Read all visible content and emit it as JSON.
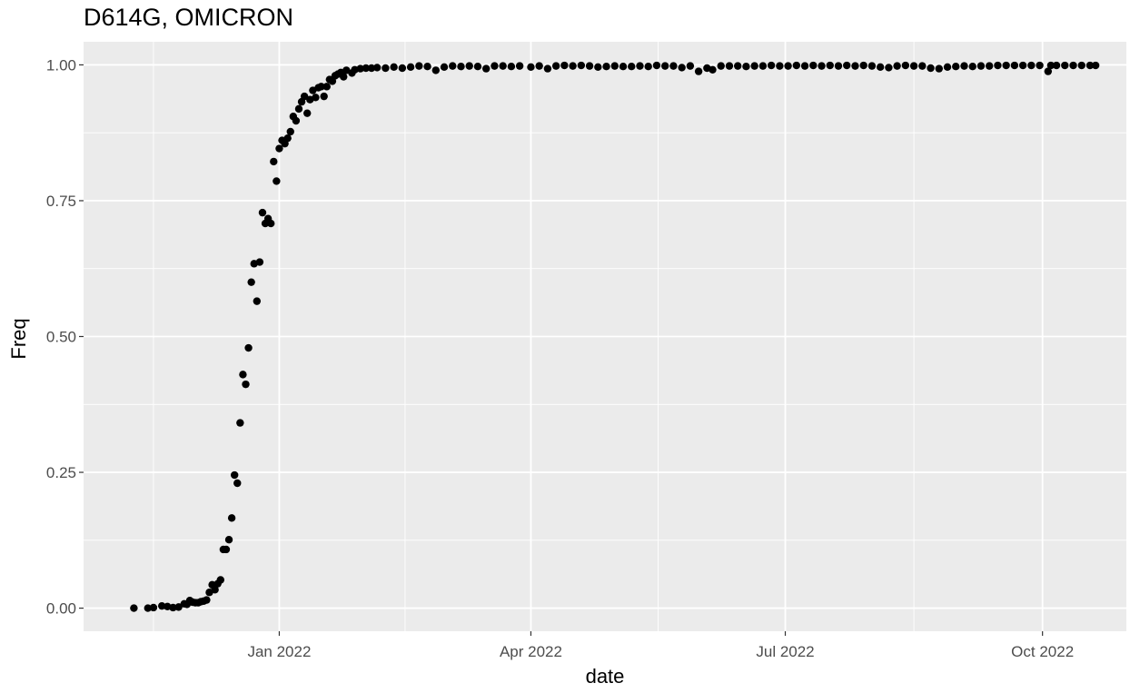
{
  "chart_data": {
    "type": "scatter",
    "title": "D614G, OMICRON",
    "xlabel": "date",
    "ylabel": "Freq",
    "x_axis_type": "date",
    "xlim": [
      "2021-10-23",
      "2022-10-31"
    ],
    "ylim": [
      -0.0425,
      1.0425
    ],
    "x_ticks": [
      {
        "date": "2022-01-01",
        "label": "Jan 2022"
      },
      {
        "date": "2022-04-01",
        "label": "Apr 2022"
      },
      {
        "date": "2022-07-01",
        "label": "Jul 2022"
      },
      {
        "date": "2022-10-01",
        "label": "Oct 2022"
      }
    ],
    "y_ticks": [
      {
        "value": 0,
        "label": "0.00"
      },
      {
        "value": 0.25,
        "label": "0.25"
      },
      {
        "value": 0.5,
        "label": "0.50"
      },
      {
        "value": 0.75,
        "label": "0.75"
      },
      {
        "value": 1,
        "label": "1.00"
      }
    ],
    "grid": true,
    "legend": "none",
    "point_color": "#000000",
    "panel_background": "#ebebeb",
    "grid_color": "#ffffff",
    "points": [
      {
        "x": "2021-11-10",
        "y": 0.0
      },
      {
        "x": "2021-11-15",
        "y": 0.0
      },
      {
        "x": "2021-11-17",
        "y": 0.001
      },
      {
        "x": "2021-11-20",
        "y": 0.004
      },
      {
        "x": "2021-11-22",
        "y": 0.003
      },
      {
        "x": "2021-11-24",
        "y": 0.001
      },
      {
        "x": "2021-11-26",
        "y": 0.002
      },
      {
        "x": "2021-11-28",
        "y": 0.008
      },
      {
        "x": "2021-11-29",
        "y": 0.007
      },
      {
        "x": "2021-11-30",
        "y": 0.014
      },
      {
        "x": "2021-12-01",
        "y": 0.011
      },
      {
        "x": "2021-12-02",
        "y": 0.01
      },
      {
        "x": "2021-12-03",
        "y": 0.01
      },
      {
        "x": "2021-12-04",
        "y": 0.012
      },
      {
        "x": "2021-12-05",
        "y": 0.013
      },
      {
        "x": "2021-12-06",
        "y": 0.015
      },
      {
        "x": "2021-12-07",
        "y": 0.029
      },
      {
        "x": "2021-12-08",
        "y": 0.043
      },
      {
        "x": "2021-12-09",
        "y": 0.034
      },
      {
        "x": "2021-12-10",
        "y": 0.045
      },
      {
        "x": "2021-12-11",
        "y": 0.052
      },
      {
        "x": "2021-12-12",
        "y": 0.108
      },
      {
        "x": "2021-12-13",
        "y": 0.108
      },
      {
        "x": "2021-12-14",
        "y": 0.126
      },
      {
        "x": "2021-12-15",
        "y": 0.166
      },
      {
        "x": "2021-12-16",
        "y": 0.245
      },
      {
        "x": "2021-12-17",
        "y": 0.23
      },
      {
        "x": "2021-12-18",
        "y": 0.341
      },
      {
        "x": "2021-12-19",
        "y": 0.43
      },
      {
        "x": "2021-12-20",
        "y": 0.412
      },
      {
        "x": "2021-12-21",
        "y": 0.479
      },
      {
        "x": "2021-12-22",
        "y": 0.6
      },
      {
        "x": "2021-12-23",
        "y": 0.634
      },
      {
        "x": "2021-12-24",
        "y": 0.565
      },
      {
        "x": "2021-12-25",
        "y": 0.637
      },
      {
        "x": "2021-12-26",
        "y": 0.728
      },
      {
        "x": "2021-12-27",
        "y": 0.708
      },
      {
        "x": "2021-12-28",
        "y": 0.717
      },
      {
        "x": "2021-12-29",
        "y": 0.708
      },
      {
        "x": "2021-12-30",
        "y": 0.822
      },
      {
        "x": "2021-12-31",
        "y": 0.786
      },
      {
        "x": "2022-01-01",
        "y": 0.846
      },
      {
        "x": "2022-01-02",
        "y": 0.861
      },
      {
        "x": "2022-01-03",
        "y": 0.855
      },
      {
        "x": "2022-01-04",
        "y": 0.865
      },
      {
        "x": "2022-01-05",
        "y": 0.877
      },
      {
        "x": "2022-01-06",
        "y": 0.905
      },
      {
        "x": "2022-01-07",
        "y": 0.897
      },
      {
        "x": "2022-01-08",
        "y": 0.919
      },
      {
        "x": "2022-01-09",
        "y": 0.932
      },
      {
        "x": "2022-01-10",
        "y": 0.942
      },
      {
        "x": "2022-01-11",
        "y": 0.911
      },
      {
        "x": "2022-01-12",
        "y": 0.936
      },
      {
        "x": "2022-01-13",
        "y": 0.953
      },
      {
        "x": "2022-01-14",
        "y": 0.94
      },
      {
        "x": "2022-01-15",
        "y": 0.958
      },
      {
        "x": "2022-01-16",
        "y": 0.96
      },
      {
        "x": "2022-01-17",
        "y": 0.942
      },
      {
        "x": "2022-01-18",
        "y": 0.96
      },
      {
        "x": "2022-01-19",
        "y": 0.973
      },
      {
        "x": "2022-01-20",
        "y": 0.97
      },
      {
        "x": "2022-01-21",
        "y": 0.98
      },
      {
        "x": "2022-01-22",
        "y": 0.983
      },
      {
        "x": "2022-01-23",
        "y": 0.986
      },
      {
        "x": "2022-01-24",
        "y": 0.978
      },
      {
        "x": "2022-01-25",
        "y": 0.99
      },
      {
        "x": "2022-01-27",
        "y": 0.985
      },
      {
        "x": "2022-01-28",
        "y": 0.991
      },
      {
        "x": "2022-01-30",
        "y": 0.993
      },
      {
        "x": "2022-02-01",
        "y": 0.994
      },
      {
        "x": "2022-02-03",
        "y": 0.994
      },
      {
        "x": "2022-02-05",
        "y": 0.995
      },
      {
        "x": "2022-02-08",
        "y": 0.994
      },
      {
        "x": "2022-02-11",
        "y": 0.996
      },
      {
        "x": "2022-02-14",
        "y": 0.994
      },
      {
        "x": "2022-02-17",
        "y": 0.996
      },
      {
        "x": "2022-02-20",
        "y": 0.998
      },
      {
        "x": "2022-02-23",
        "y": 0.997
      },
      {
        "x": "2022-02-26",
        "y": 0.99
      },
      {
        "x": "2022-03-01",
        "y": 0.996
      },
      {
        "x": "2022-03-04",
        "y": 0.998
      },
      {
        "x": "2022-03-07",
        "y": 0.997
      },
      {
        "x": "2022-03-10",
        "y": 0.998
      },
      {
        "x": "2022-03-13",
        "y": 0.997
      },
      {
        "x": "2022-03-16",
        "y": 0.993
      },
      {
        "x": "2022-03-19",
        "y": 0.998
      },
      {
        "x": "2022-03-22",
        "y": 0.998
      },
      {
        "x": "2022-03-25",
        "y": 0.997
      },
      {
        "x": "2022-03-28",
        "y": 0.998
      },
      {
        "x": "2022-04-01",
        "y": 0.996
      },
      {
        "x": "2022-04-04",
        "y": 0.998
      },
      {
        "x": "2022-04-07",
        "y": 0.993
      },
      {
        "x": "2022-04-10",
        "y": 0.998
      },
      {
        "x": "2022-04-13",
        "y": 0.999
      },
      {
        "x": "2022-04-16",
        "y": 0.998
      },
      {
        "x": "2022-04-19",
        "y": 0.999
      },
      {
        "x": "2022-04-22",
        "y": 0.998
      },
      {
        "x": "2022-04-25",
        "y": 0.996
      },
      {
        "x": "2022-04-28",
        "y": 0.997
      },
      {
        "x": "2022-05-01",
        "y": 0.998
      },
      {
        "x": "2022-05-04",
        "y": 0.997
      },
      {
        "x": "2022-05-07",
        "y": 0.997
      },
      {
        "x": "2022-05-10",
        "y": 0.998
      },
      {
        "x": "2022-05-13",
        "y": 0.997
      },
      {
        "x": "2022-05-16",
        "y": 0.999
      },
      {
        "x": "2022-05-19",
        "y": 0.998
      },
      {
        "x": "2022-05-22",
        "y": 0.998
      },
      {
        "x": "2022-05-25",
        "y": 0.995
      },
      {
        "x": "2022-05-28",
        "y": 0.998
      },
      {
        "x": "2022-05-31",
        "y": 0.988
      },
      {
        "x": "2022-06-03",
        "y": 0.994
      },
      {
        "x": "2022-06-05",
        "y": 0.991
      },
      {
        "x": "2022-06-08",
        "y": 0.998
      },
      {
        "x": "2022-06-11",
        "y": 0.998
      },
      {
        "x": "2022-06-14",
        "y": 0.998
      },
      {
        "x": "2022-06-17",
        "y": 0.997
      },
      {
        "x": "2022-06-20",
        "y": 0.998
      },
      {
        "x": "2022-06-23",
        "y": 0.998
      },
      {
        "x": "2022-06-26",
        "y": 0.999
      },
      {
        "x": "2022-06-29",
        "y": 0.998
      },
      {
        "x": "2022-07-02",
        "y": 0.998
      },
      {
        "x": "2022-07-05",
        "y": 0.999
      },
      {
        "x": "2022-07-08",
        "y": 0.998
      },
      {
        "x": "2022-07-11",
        "y": 0.999
      },
      {
        "x": "2022-07-14",
        "y": 0.998
      },
      {
        "x": "2022-07-17",
        "y": 0.999
      },
      {
        "x": "2022-07-20",
        "y": 0.998
      },
      {
        "x": "2022-07-23",
        "y": 0.999
      },
      {
        "x": "2022-07-26",
        "y": 0.998
      },
      {
        "x": "2022-07-29",
        "y": 0.999
      },
      {
        "x": "2022-08-01",
        "y": 0.998
      },
      {
        "x": "2022-08-04",
        "y": 0.996
      },
      {
        "x": "2022-08-07",
        "y": 0.995
      },
      {
        "x": "2022-08-10",
        "y": 0.998
      },
      {
        "x": "2022-08-13",
        "y": 0.999
      },
      {
        "x": "2022-08-16",
        "y": 0.998
      },
      {
        "x": "2022-08-19",
        "y": 0.998
      },
      {
        "x": "2022-08-22",
        "y": 0.994
      },
      {
        "x": "2022-08-25",
        "y": 0.993
      },
      {
        "x": "2022-08-28",
        "y": 0.996
      },
      {
        "x": "2022-08-31",
        "y": 0.997
      },
      {
        "x": "2022-09-03",
        "y": 0.998
      },
      {
        "x": "2022-09-06",
        "y": 0.997
      },
      {
        "x": "2022-09-09",
        "y": 0.998
      },
      {
        "x": "2022-09-12",
        "y": 0.998
      },
      {
        "x": "2022-09-15",
        "y": 0.999
      },
      {
        "x": "2022-09-18",
        "y": 0.999
      },
      {
        "x": "2022-09-21",
        "y": 0.999
      },
      {
        "x": "2022-09-24",
        "y": 0.999
      },
      {
        "x": "2022-09-27",
        "y": 0.999
      },
      {
        "x": "2022-09-30",
        "y": 0.999
      },
      {
        "x": "2022-10-03",
        "y": 0.988
      },
      {
        "x": "2022-10-04",
        "y": 0.999
      },
      {
        "x": "2022-10-06",
        "y": 0.999
      },
      {
        "x": "2022-10-09",
        "y": 0.999
      },
      {
        "x": "2022-10-12",
        "y": 0.999
      },
      {
        "x": "2022-10-15",
        "y": 0.999
      },
      {
        "x": "2022-10-18",
        "y": 0.999
      },
      {
        "x": "2022-10-20",
        "y": 0.999
      }
    ]
  }
}
